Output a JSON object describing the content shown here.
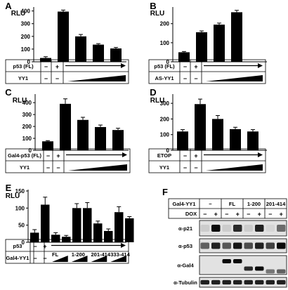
{
  "panels": [
    {
      "letter": "A",
      "ylabel": "RLU",
      "ymax": 420,
      "ticks": [
        0,
        100,
        200,
        300,
        400
      ],
      "values": [
        30,
        395,
        200,
        135,
        105
      ],
      "errors": [
        10,
        12,
        15,
        8,
        8
      ],
      "rows": [
        {
          "label": "p53 (FL)",
          "signs": [
            "−",
            "+"
          ],
          "arrow": true
        },
        {
          "label": "YY1",
          "signs": [
            "−",
            "−"
          ],
          "wedge": true
        }
      ]
    },
    {
      "letter": "B",
      "ylabel": "RLU",
      "ymax": 280,
      "ticks": [
        0,
        100,
        200
      ],
      "values": [
        50,
        155,
        195,
        260
      ],
      "errors": [
        4,
        7,
        8,
        10
      ],
      "rows": [
        {
          "label": "p53 (FL)",
          "signs": [
            "−",
            "+"
          ],
          "arrow": true
        },
        {
          "label": "AS-YY1",
          "signs": [
            "−",
            "−"
          ],
          "wedge": true
        }
      ]
    },
    {
      "letter": "C",
      "ylabel": "RLU",
      "ymax": 460,
      "ticks": [
        0,
        100,
        200,
        300,
        400
      ],
      "values": [
        75,
        390,
        255,
        195,
        170
      ],
      "errors": [
        6,
        42,
        22,
        17,
        15
      ],
      "rows": [
        {
          "label": "Gal4-p53 (FL)",
          "signs": [
            "−",
            "+"
          ],
          "arrow": true
        },
        {
          "label": "YY1",
          "signs": [
            "−",
            "−"
          ],
          "wedge": true
        }
      ]
    },
    {
      "letter": "D",
      "ylabel": "RLU",
      "ymax": 350,
      "ticks": [
        0,
        100,
        200,
        300
      ],
      "values": [
        120,
        295,
        200,
        135,
        120
      ],
      "errors": [
        12,
        32,
        22,
        12,
        12
      ],
      "rows": [
        {
          "label": "ETOP",
          "signs": [
            "−",
            "+"
          ],
          "arrow": true
        },
        {
          "label": "YY1",
          "signs": [
            "−",
            "−"
          ],
          "wedge": true
        }
      ]
    },
    {
      "letter": "E",
      "ylabel": "RLU",
      "ymax": 150,
      "ticks": [
        0,
        50,
        100,
        150
      ],
      "values": [
        28,
        110,
        22,
        16,
        100,
        100,
        55,
        33,
        88,
        70
      ],
      "errors": [
        9,
        22,
        6,
        4,
        13,
        16,
        7,
        6,
        16,
        5
      ],
      "p53_label": "p53",
      "p53_signs": [
        "−",
        "+"
      ],
      "gal4_label": "Gal4-YY1",
      "gal4_signs": [
        "−",
        "−"
      ],
      "constructs": [
        "FL",
        "1-200",
        "201-414",
        "333-414"
      ]
    }
  ],
  "blot": {
    "letter": "F",
    "header_label": "Gal4-YY1",
    "groups": [
      "−",
      "FL",
      "1-200",
      "201-414"
    ],
    "dox_label": "DOX",
    "dox_signs": [
      "−",
      "+",
      "−",
      "+",
      "−",
      "+",
      "−",
      "+"
    ],
    "rows": [
      "α-p21",
      "α-p53",
      "α-Gal4",
      "α-Tubulin"
    ],
    "intensities": [
      [
        0.1,
        1.0,
        0.1,
        0.85,
        0.1,
        0.9,
        0.05,
        0.55
      ],
      [
        0.6,
        0.9,
        0.65,
        0.95,
        0.7,
        0.9,
        0.75,
        1.0
      ],
      [
        0.0,
        0.0,
        1.0,
        1.0,
        0.85,
        1.0,
        0.5,
        0.6
      ],
      [
        0.9,
        0.9,
        0.9,
        0.9,
        0.9,
        0.9,
        0.9,
        0.9
      ]
    ]
  }
}
